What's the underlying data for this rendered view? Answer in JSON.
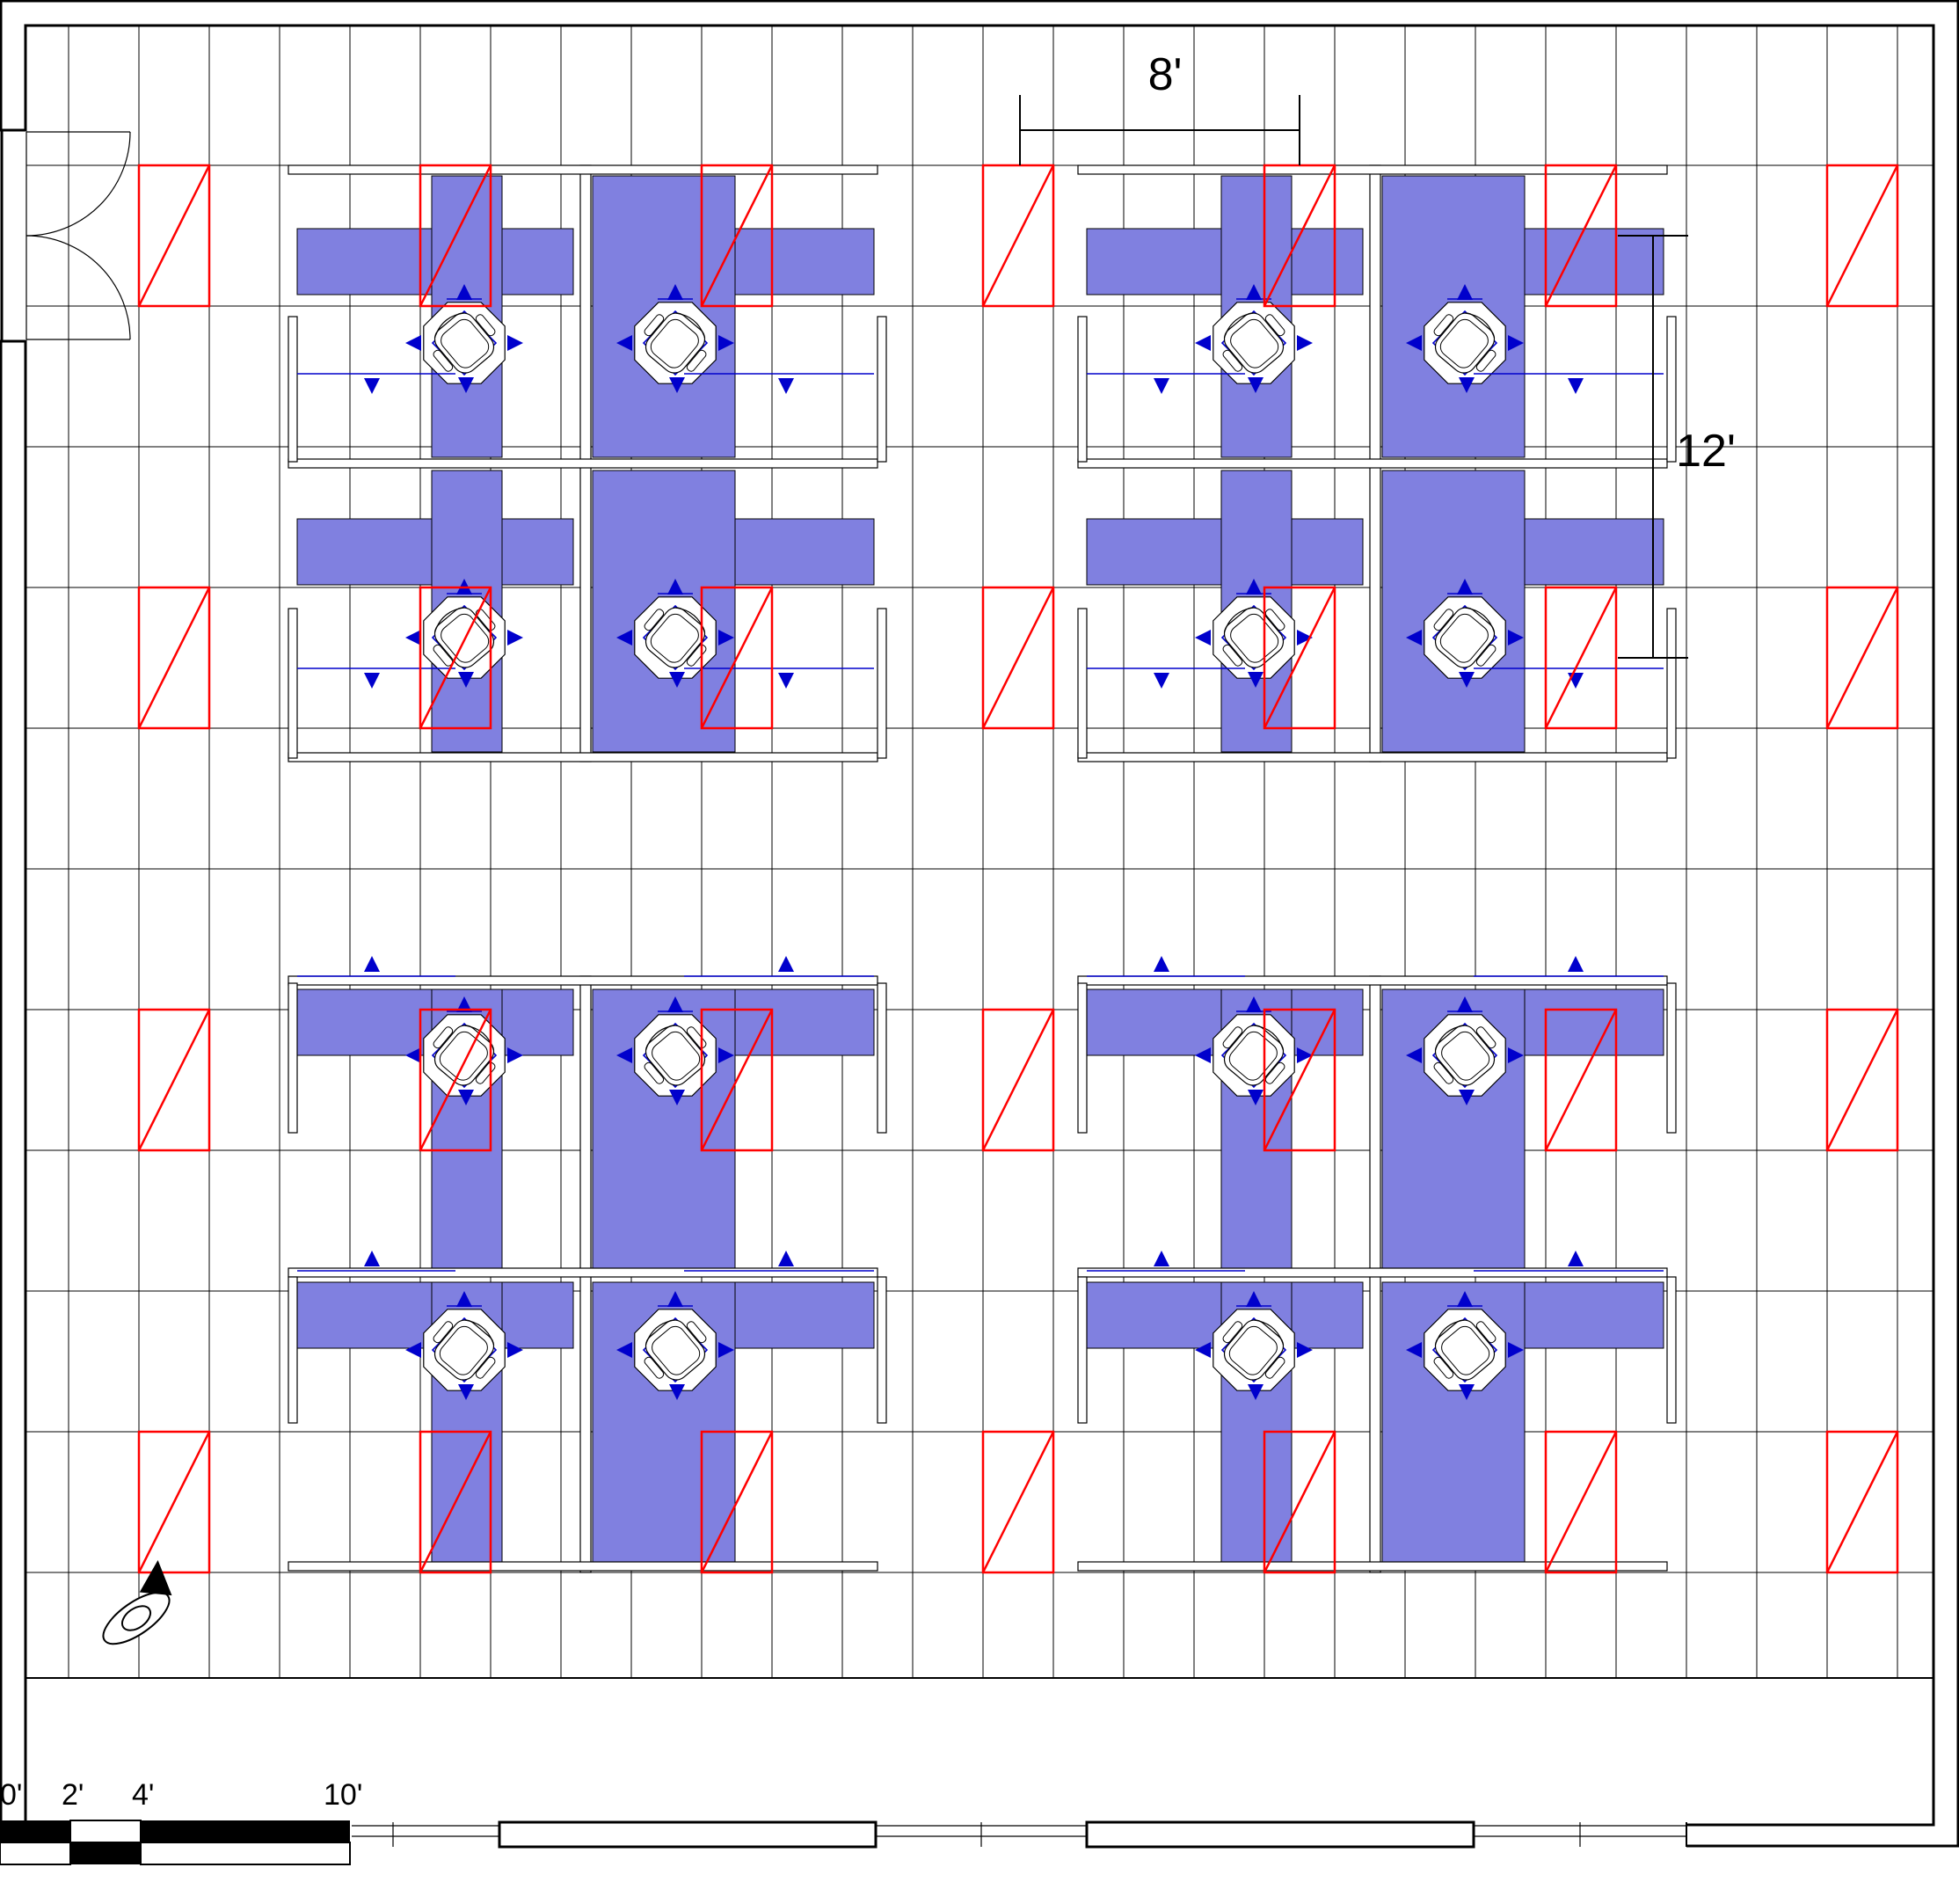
{
  "plan": {
    "dimensions": {
      "width_label": "8'",
      "depth_label": "12'"
    },
    "scale_bar": {
      "labels": [
        "0'",
        "2'",
        "4'",
        "10'"
      ]
    },
    "legend": {
      "light_fixture_icon": "red-diagonal-rectangle",
      "airflow_icon": "blue-arrow",
      "chair_icon": "office-chair",
      "viewpoint_icon": "eye-camera"
    },
    "colors": {
      "desk": "#8080e0",
      "airflow": "#0000cc",
      "light_fixture": "#ff0000",
      "partition": "#ffffff",
      "wall": "#000000",
      "grid": "#000000"
    }
  }
}
